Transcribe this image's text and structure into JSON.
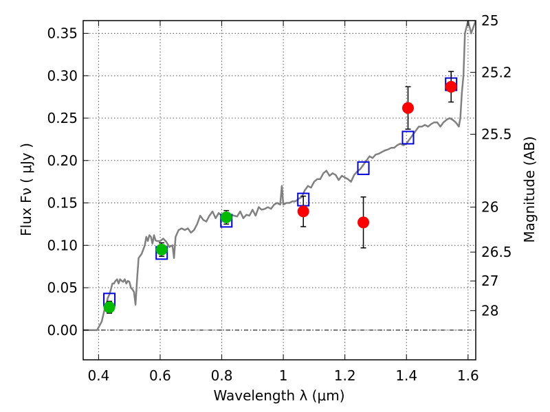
{
  "chart_data": {
    "type": "scatter",
    "xlabel": "Wavelength  λ (μm)",
    "ylabel": "Flux  Fν  ( μJy )",
    "y2label": "Magnitude (AB)",
    "xlim": [
      0.35,
      1.625
    ],
    "ylim": [
      -0.035,
      0.365
    ],
    "grid": true,
    "x_ticks": [
      0.4,
      0.6,
      0.8,
      1.0,
      1.2,
      1.4,
      1.6
    ],
    "x_tick_labels": [
      "0.4",
      "0.6",
      "0.8",
      "1",
      "1.2",
      "1.4",
      "1.6"
    ],
    "y_ticks": [
      0.0,
      0.05,
      0.1,
      0.15,
      0.2,
      0.25,
      0.3,
      0.35
    ],
    "y_tick_labels": [
      "0.00",
      "0.05",
      "0.10",
      "0.15",
      "0.20",
      "0.25",
      "0.30",
      "0.35"
    ],
    "y2_ticks": [
      {
        "label": "25",
        "flux": 0.365
      },
      {
        "label": "25.2",
        "flux": 0.304
      },
      {
        "label": "25.5",
        "flux": 0.231
      },
      {
        "label": "26",
        "flux": 0.145
      },
      {
        "label": "26.5",
        "flux": 0.092
      },
      {
        "label": "27",
        "flux": 0.058
      },
      {
        "label": "28",
        "flux": 0.023
      }
    ],
    "series": [
      {
        "kind": "model-spectrum",
        "color": "#808080",
        "x": [
          0.35,
          0.38,
          0.395,
          0.41,
          0.42,
          0.425,
          0.43,
          0.435,
          0.44,
          0.445,
          0.45,
          0.455,
          0.46,
          0.465,
          0.47,
          0.475,
          0.48,
          0.485,
          0.49,
          0.495,
          0.5,
          0.505,
          0.51,
          0.515,
          0.52,
          0.525,
          0.53,
          0.54,
          0.55,
          0.555,
          0.56,
          0.565,
          0.57,
          0.575,
          0.58,
          0.585,
          0.59,
          0.6,
          0.61,
          0.62,
          0.63,
          0.64,
          0.645,
          0.65,
          0.66,
          0.67,
          0.68,
          0.69,
          0.7,
          0.71,
          0.72,
          0.73,
          0.74,
          0.75,
          0.76,
          0.77,
          0.78,
          0.79,
          0.8,
          0.81,
          0.82,
          0.83,
          0.84,
          0.85,
          0.86,
          0.87,
          0.88,
          0.89,
          0.9,
          0.91,
          0.92,
          0.93,
          0.94,
          0.95,
          0.96,
          0.97,
          0.98,
          0.99,
          0.995,
          1.0,
          1.01,
          1.02,
          1.03,
          1.04,
          1.05,
          1.06,
          1.07,
          1.08,
          1.09,
          1.1,
          1.11,
          1.12,
          1.13,
          1.14,
          1.15,
          1.16,
          1.17,
          1.18,
          1.19,
          1.2,
          1.21,
          1.22,
          1.23,
          1.24,
          1.25,
          1.26,
          1.27,
          1.28,
          1.29,
          1.3,
          1.31,
          1.32,
          1.33,
          1.34,
          1.35,
          1.36,
          1.37,
          1.38,
          1.39,
          1.4,
          1.41,
          1.42,
          1.43,
          1.44,
          1.45,
          1.46,
          1.47,
          1.48,
          1.49,
          1.5,
          1.51,
          1.52,
          1.53,
          1.54,
          1.55,
          1.56,
          1.57,
          1.575,
          1.58,
          1.585,
          1.59,
          1.6,
          1.61,
          1.625
        ],
        "y": [
          0.0,
          0.0,
          0.0,
          0.01,
          0.025,
          0.03,
          0.038,
          0.042,
          0.048,
          0.055,
          0.055,
          0.058,
          0.06,
          0.055,
          0.06,
          0.058,
          0.057,
          0.06,
          0.055,
          0.058,
          0.057,
          0.05,
          0.048,
          0.045,
          0.03,
          0.06,
          0.085,
          0.09,
          0.1,
          0.11,
          0.105,
          0.112,
          0.11,
          0.102,
          0.112,
          0.106,
          0.105,
          0.105,
          0.108,
          0.104,
          0.098,
          0.1,
          0.085,
          0.11,
          0.118,
          0.12,
          0.118,
          0.12,
          0.115,
          0.118,
          0.125,
          0.135,
          0.13,
          0.128,
          0.135,
          0.14,
          0.132,
          0.138,
          0.135,
          0.137,
          0.138,
          0.136,
          0.135,
          0.134,
          0.14,
          0.132,
          0.136,
          0.135,
          0.142,
          0.135,
          0.145,
          0.142,
          0.143,
          0.145,
          0.143,
          0.148,
          0.15,
          0.148,
          0.17,
          0.148,
          0.15,
          0.15,
          0.152,
          0.152,
          0.155,
          0.157,
          0.165,
          0.17,
          0.168,
          0.175,
          0.178,
          0.178,
          0.185,
          0.188,
          0.182,
          0.185,
          0.183,
          0.177,
          0.182,
          0.18,
          0.178,
          0.175,
          0.183,
          0.187,
          0.19,
          0.195,
          0.2,
          0.205,
          0.203,
          0.207,
          0.208,
          0.21,
          0.212,
          0.213,
          0.215,
          0.215,
          0.218,
          0.22,
          0.218,
          0.22,
          0.225,
          0.23,
          0.235,
          0.24,
          0.24,
          0.242,
          0.24,
          0.243,
          0.245,
          0.245,
          0.24,
          0.245,
          0.248,
          0.25,
          0.248,
          0.245,
          0.24,
          0.25,
          0.28,
          0.3,
          0.35,
          0.365,
          0.35,
          0.365
        ]
      },
      {
        "kind": "model-photometry",
        "marker": "open-square",
        "color": "#0000dd",
        "x": [
          0.435,
          0.605,
          0.815,
          1.065,
          1.26,
          1.405,
          1.545
        ],
        "y": [
          0.036,
          0.091,
          0.129,
          0.154,
          0.191,
          0.227,
          0.29
        ]
      },
      {
        "kind": "observed",
        "marker": "filled-circle",
        "color": "#00bb00",
        "x": [
          0.435,
          0.605,
          0.815
        ],
        "y": [
          0.027,
          0.095,
          0.133
        ],
        "yerr": [
          0.007,
          0.008,
          0.008
        ]
      },
      {
        "kind": "observed",
        "marker": "filled-circle",
        "color": "#ff0000",
        "x": [
          1.065,
          1.26,
          1.405,
          1.545
        ],
        "y": [
          0.14,
          0.127,
          0.262,
          0.287
        ],
        "yerr": [
          0.018,
          0.03,
          0.025,
          0.018
        ]
      }
    ]
  }
}
